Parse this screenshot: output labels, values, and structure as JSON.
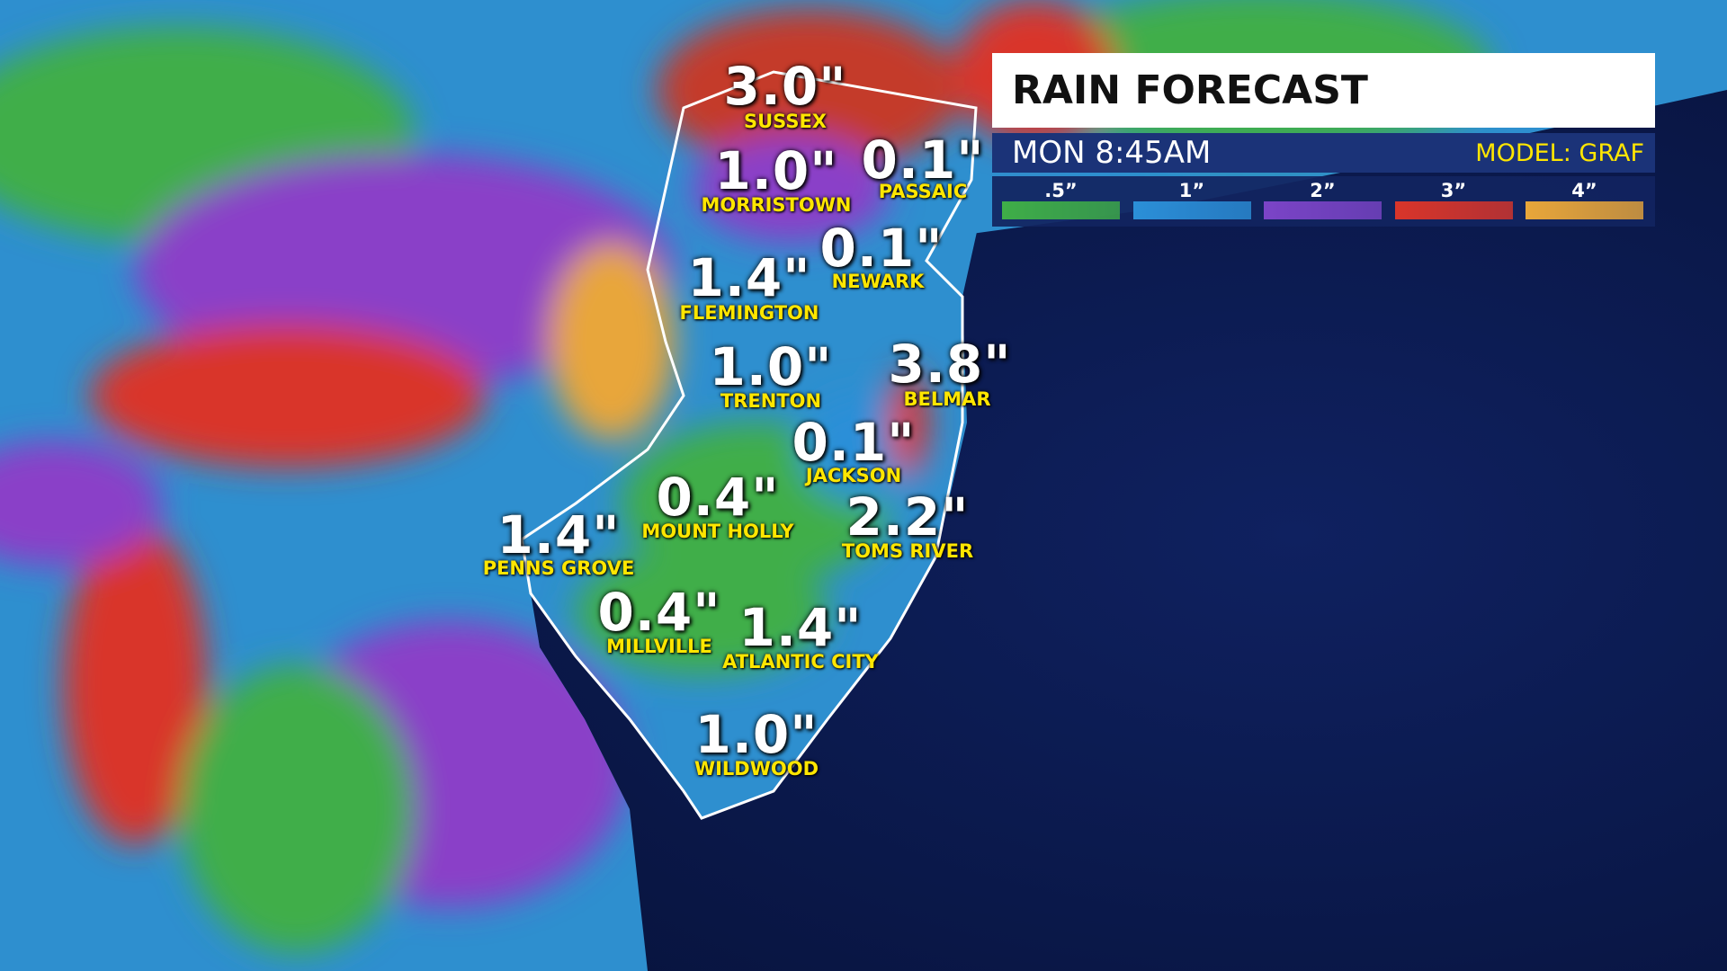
{
  "header": {
    "title": "RAIN FORECAST",
    "time": "MON 8:45AM",
    "model": "MODEL: GRAF"
  },
  "legend": [
    {
      "label": ".5”",
      "color": "#3fae48"
    },
    {
      "label": "1”",
      "color": "#2b8fd8"
    },
    {
      "label": "2”",
      "color": "#7b44c7"
    },
    {
      "label": "3”",
      "color": "#d9352a"
    },
    {
      "label": "4”",
      "color": "#e8a63a"
    }
  ],
  "locations": [
    {
      "name": "SUSSEX",
      "amount": "3.0\""
    },
    {
      "name": "MORRISTOWN",
      "amount": "1.0\""
    },
    {
      "name": "PASSAIC",
      "amount": "0.1\""
    },
    {
      "name": "NEWARK",
      "amount": "0.1\""
    },
    {
      "name": "FLEMINGTON",
      "amount": "1.4\""
    },
    {
      "name": "TRENTON",
      "amount": "1.0\""
    },
    {
      "name": "BELMAR",
      "amount": "3.8\""
    },
    {
      "name": "JACKSON",
      "amount": "0.1\""
    },
    {
      "name": "MOUNT HOLLY",
      "amount": "0.4\""
    },
    {
      "name": "TOMS RIVER",
      "amount": "2.2\""
    },
    {
      "name": "PENNS GROVE",
      "amount": "1.4\""
    },
    {
      "name": "MILLVILLE",
      "amount": "0.4\""
    },
    {
      "name": "ATLANTIC CITY",
      "amount": "1.4\""
    },
    {
      "name": "WILDWOOD",
      "amount": "1.0\""
    }
  ]
}
